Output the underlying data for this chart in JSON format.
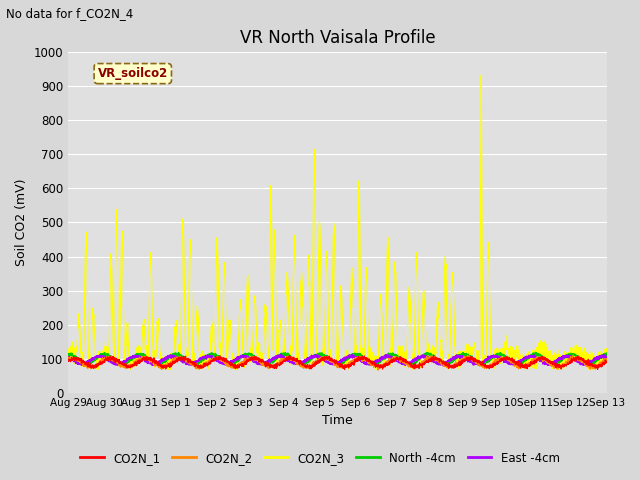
{
  "title": "VR North Vaisala Profile",
  "subtitle": "No data for f_CO2N_4",
  "ylabel": "Soil CO2 (mV)",
  "xlabel": "Time",
  "legend_label": "VR_soilco2",
  "ylim": [
    0,
    1000
  ],
  "fig_bg_color": "#d8d8d8",
  "plot_bg_color": "#e0e0e0",
  "series": {
    "CO2N_1": {
      "color": "#ff0000",
      "linewidth": 0.8
    },
    "CO2N_2": {
      "color": "#ff8800",
      "linewidth": 0.8
    },
    "CO2N_3": {
      "color": "#ffff00",
      "linewidth": 0.8
    },
    "North -4cm": {
      "color": "#00cc00",
      "linewidth": 1.2
    },
    "East -4cm": {
      "color": "#aa00ff",
      "linewidth": 1.2
    }
  },
  "x_tick_labels": [
    "Aug 29",
    "Aug 30",
    "Aug 31",
    "Sep 1",
    "Sep 2",
    "Sep 3",
    "Sep 4",
    "Sep 5",
    "Sep 6",
    "Sep 7",
    "Sep 8",
    "Sep 9",
    "Sep 10",
    "Sep 11",
    "Sep 12",
    "Sep 13"
  ],
  "yticks": [
    0,
    100,
    200,
    300,
    400,
    500,
    600,
    700,
    800,
    900,
    1000
  ]
}
